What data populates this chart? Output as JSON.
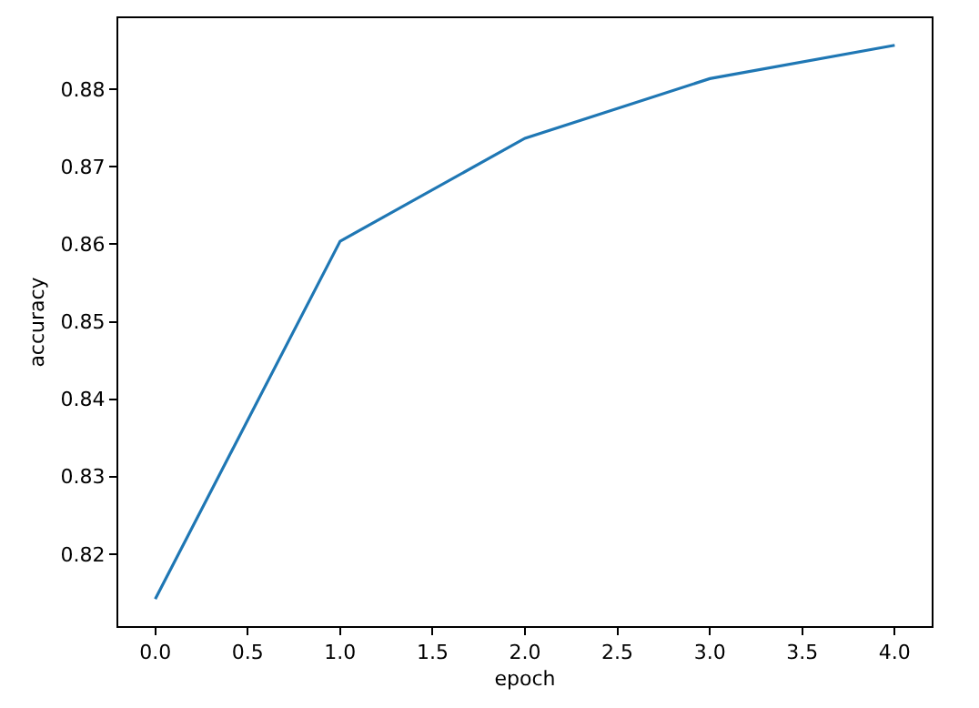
{
  "chart_data": {
    "type": "line",
    "xlabel": "epoch",
    "ylabel": "accuracy",
    "x": [
      0,
      1,
      2,
      3,
      4
    ],
    "series": [
      {
        "color": "#1f77b4",
        "values": [
          0.8142,
          0.8604,
          0.8737,
          0.8814,
          0.8857
        ]
      }
    ],
    "xlim": [
      -0.2,
      4.2
    ],
    "xticks": [
      {
        "value": 0,
        "label": "0.0"
      },
      {
        "value": 0.5,
        "label": "0.5"
      },
      {
        "value": 1,
        "label": "1.0"
      },
      {
        "value": 1.5,
        "label": "1.5"
      },
      {
        "value": 2,
        "label": "2.0"
      },
      {
        "value": 2.5,
        "label": "2.5"
      },
      {
        "value": 3,
        "label": "3.0"
      },
      {
        "value": 3.5,
        "label": "3.5"
      },
      {
        "value": 4,
        "label": "4.0"
      }
    ],
    "ylim": [
      0.8107,
      0.8892
    ],
    "yticks": [
      0.82,
      0.83,
      0.84,
      0.85,
      0.86,
      0.87,
      0.88
    ],
    "grid": false,
    "legend": false,
    "marker": "none",
    "line_style": "solid"
  }
}
